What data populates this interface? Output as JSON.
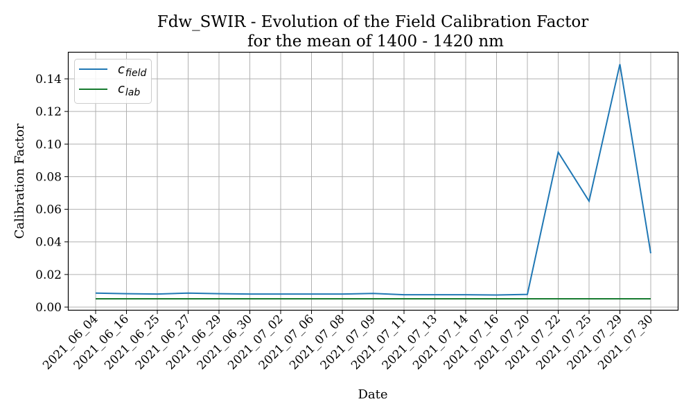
{
  "chart_data": {
    "type": "line",
    "title": "Fdw_SWIR - Evolution of the Field Calibration Factor",
    "subtitle": "for the mean of 1400 - 1420 nm",
    "xlabel": "Date",
    "ylabel": "Calibration Factor",
    "categories": [
      "2021_06_04",
      "2021_06_16",
      "2021_06_25",
      "2021_06_27",
      "2021_06_29",
      "2021_06_30",
      "2021_07_02",
      "2021_07_06",
      "2021_07_08",
      "2021_07_09",
      "2021_07_11",
      "2021_07_13",
      "2021_07_14",
      "2021_07_16",
      "2021_07_20",
      "2021_07_22",
      "2021_07_25",
      "2021_07_29",
      "2021_07_30"
    ],
    "ylim": [
      -0.002,
      0.1565
    ],
    "yticks": [
      "0.00",
      "0.02",
      "0.04",
      "0.06",
      "0.08",
      "0.10",
      "0.12",
      "0.14"
    ],
    "grid": true,
    "legend_position": "top-left",
    "series": [
      {
        "name": "c_field",
        "label_main": "c",
        "label_sub": "field",
        "color": "#1f77b4",
        "values": [
          0.0086,
          0.0082,
          0.008,
          0.0086,
          0.0082,
          0.008,
          0.008,
          0.008,
          0.008,
          0.0084,
          0.0076,
          0.0076,
          0.0076,
          0.0074,
          0.0078,
          0.095,
          0.065,
          0.149,
          0.033
        ]
      },
      {
        "name": "c_lab",
        "label_main": "c",
        "label_sub": "lab",
        "color": "#157a2e",
        "values": [
          0.0051,
          0.0051,
          0.0051,
          0.0051,
          0.0051,
          0.0051,
          0.0051,
          0.0051,
          0.0051,
          0.0051,
          0.0051,
          0.0051,
          0.0051,
          0.0051,
          0.0051,
          0.0051,
          0.0051,
          0.0051,
          0.0051
        ]
      }
    ]
  }
}
